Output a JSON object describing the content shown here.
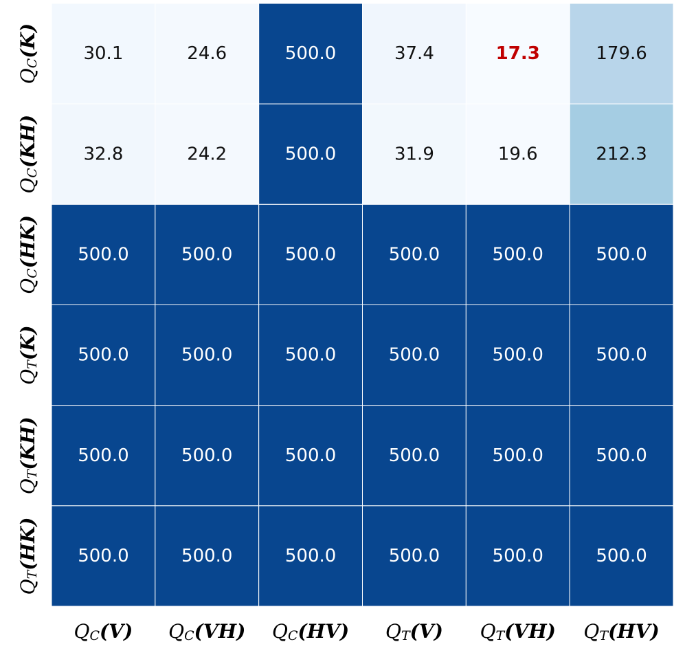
{
  "chart_data": {
    "type": "heatmap",
    "x_categories": [
      {
        "base": "Q",
        "sub": "C",
        "arg": "(V)"
      },
      {
        "base": "Q",
        "sub": "C",
        "arg": "(VH)"
      },
      {
        "base": "Q",
        "sub": "C",
        "arg": "(HV)"
      },
      {
        "base": "Q",
        "sub": "T",
        "arg": "(V)"
      },
      {
        "base": "Q",
        "sub": "T",
        "arg": "(VH)"
      },
      {
        "base": "Q",
        "sub": "T",
        "arg": "(HV)"
      }
    ],
    "y_categories": [
      {
        "base": "Q",
        "sub": "C",
        "arg": "(K)"
      },
      {
        "base": "Q",
        "sub": "C",
        "arg": "(KH)"
      },
      {
        "base": "Q",
        "sub": "C",
        "arg": "(HK)"
      },
      {
        "base": "Q",
        "sub": "T",
        "arg": "(K)"
      },
      {
        "base": "Q",
        "sub": "T",
        "arg": "(KH)"
      },
      {
        "base": "Q",
        "sub": "T",
        "arg": "(HK)"
      }
    ],
    "values": [
      [
        30.1,
        24.6,
        500.0,
        37.4,
        17.3,
        179.6
      ],
      [
        32.8,
        24.2,
        500.0,
        31.9,
        19.6,
        212.3
      ],
      [
        500.0,
        500.0,
        500.0,
        500.0,
        500.0,
        500.0
      ],
      [
        500.0,
        500.0,
        500.0,
        500.0,
        500.0,
        500.0
      ],
      [
        500.0,
        500.0,
        500.0,
        500.0,
        500.0,
        500.0
      ],
      [
        500.0,
        500.0,
        500.0,
        500.0,
        500.0,
        500.0
      ]
    ],
    "value_labels": [
      [
        "30.1",
        "24.6",
        "500.0",
        "37.4",
        "17.3",
        "179.6"
      ],
      [
        "32.8",
        "24.2",
        "500.0",
        "31.9",
        "19.6",
        "212.3"
      ],
      [
        "500.0",
        "500.0",
        "500.0",
        "500.0",
        "500.0",
        "500.0"
      ],
      [
        "500.0",
        "500.0",
        "500.0",
        "500.0",
        "500.0",
        "500.0"
      ],
      [
        "500.0",
        "500.0",
        "500.0",
        "500.0",
        "500.0",
        "500.0"
      ],
      [
        "500.0",
        "500.0",
        "500.0",
        "500.0",
        "500.0",
        "500.0"
      ]
    ],
    "colormap": [
      "#f7fbff",
      "#deebf7",
      "#c6dbef",
      "#9ecae1",
      "#6baed6",
      "#4292c6",
      "#2171b5",
      "#08468f"
    ],
    "highlight_cells": [
      [
        0,
        4
      ]
    ],
    "highlight_color": "#c00000"
  }
}
